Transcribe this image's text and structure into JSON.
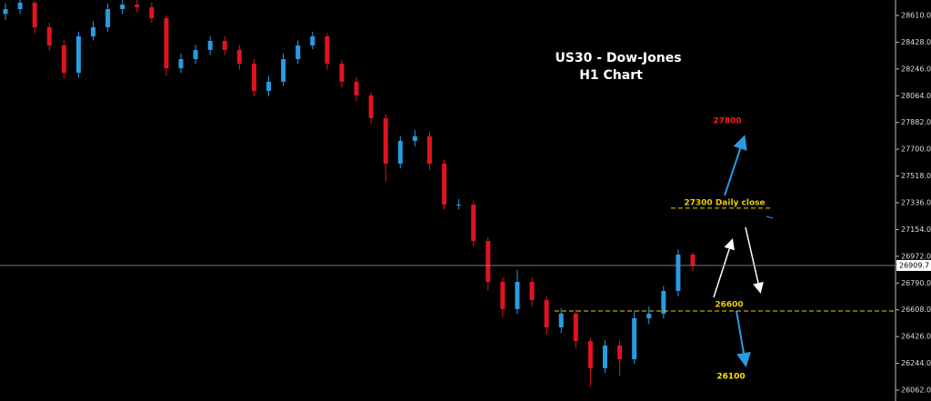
{
  "chart_data": {
    "type": "candlestick",
    "title": "US30 - Dow-Jones",
    "subtitle": "H1 Chart",
    "up_color": "#2a9be0",
    "down_color": "#e0141e",
    "open": [
      28620,
      28653,
      28697,
      28530,
      28406,
      28220,
      28468,
      28530,
      28653,
      28684,
      28666,
      28591,
      28251,
      28313,
      28375,
      28437,
      28375,
      28282,
      28097,
      28159,
      28313,
      28406,
      28468,
      28282,
      28159,
      28066,
      27911,
      27602,
      27757,
      27788,
      27602,
      27324,
      27324,
      27076,
      26798,
      26613,
      26798,
      26674,
      26489,
      26582,
      26396,
      26211,
      26365,
      26272,
      26551,
      26582,
      26736,
      26984
    ],
    "high": [
      28693,
      28715,
      28710,
      28560,
      28440,
      28500,
      28570,
      28690,
      28715,
      28715,
      28700,
      28610,
      28350,
      28410,
      28470,
      28470,
      28410,
      28310,
      28200,
      28350,
      28440,
      28500,
      28490,
      28310,
      28190,
      28090,
      27940,
      27790,
      27830,
      27820,
      27630,
      27360,
      27350,
      27100,
      26830,
      26880,
      26830,
      26700,
      26620,
      26610,
      26420,
      26400,
      26400,
      26600,
      26630,
      26770,
      27020,
      27000
    ],
    "low": [
      28580,
      28620,
      28490,
      28370,
      28180,
      28190,
      28440,
      28500,
      28620,
      28630,
      28560,
      28200,
      28220,
      28280,
      28340,
      28340,
      28240,
      28060,
      28060,
      28130,
      28280,
      28380,
      28240,
      28120,
      28030,
      27870,
      27480,
      27570,
      27720,
      27560,
      27290,
      27290,
      27040,
      26740,
      26560,
      26580,
      26630,
      26440,
      26450,
      26350,
      26090,
      26180,
      26160,
      26240,
      26510,
      26550,
      26700,
      26870
    ],
    "close": [
      28653,
      28697,
      28530,
      28406,
      28220,
      28468,
      28530,
      28653,
      28684,
      28666,
      28591,
      28251,
      28313,
      28375,
      28437,
      28375,
      28282,
      28097,
      28159,
      28313,
      28406,
      28468,
      28282,
      28159,
      28066,
      27911,
      27602,
      27757,
      27788,
      27602,
      27324,
      27324,
      27076,
      26798,
      26613,
      26798,
      26674,
      26489,
      26582,
      26396,
      26211,
      26365,
      26272,
      26551,
      26582,
      26736,
      26984,
      26910
    ],
    "ylim": [
      25988,
      28715
    ],
    "yticks": [
      {
        "value": 28610,
        "label": "28610.0"
      },
      {
        "value": 28428,
        "label": "28428.0"
      },
      {
        "value": 28246,
        "label": "28246.0"
      },
      {
        "value": 28064,
        "label": "28064.0"
      },
      {
        "value": 27882,
        "label": "27882.0"
      },
      {
        "value": 27700,
        "label": "27700.0"
      },
      {
        "value": 27518,
        "label": "27518.0"
      },
      {
        "value": 27336,
        "label": "27336.0"
      },
      {
        "value": 27154,
        "label": "27154.0"
      },
      {
        "value": 26972,
        "label": "26972.0"
      },
      {
        "value": 26790,
        "label": "26790.0"
      },
      {
        "value": 26608,
        "label": "26608.0"
      },
      {
        "value": 26426,
        "label": "26426.0"
      },
      {
        "value": 26244,
        "label": "26244.0"
      },
      {
        "value": 26062,
        "label": "26062.0"
      }
    ],
    "last_price": 26909.7,
    "levels": [
      {
        "value": 27300,
        "label": "27300 Daily close",
        "color": "#e8d000"
      },
      {
        "value": 26600,
        "color": "#e8d000"
      }
    ],
    "targets": [
      {
        "value": 27800,
        "color": "#ff1a1a"
      },
      {
        "value": 26100,
        "color": "#ffe000"
      }
    ]
  }
}
